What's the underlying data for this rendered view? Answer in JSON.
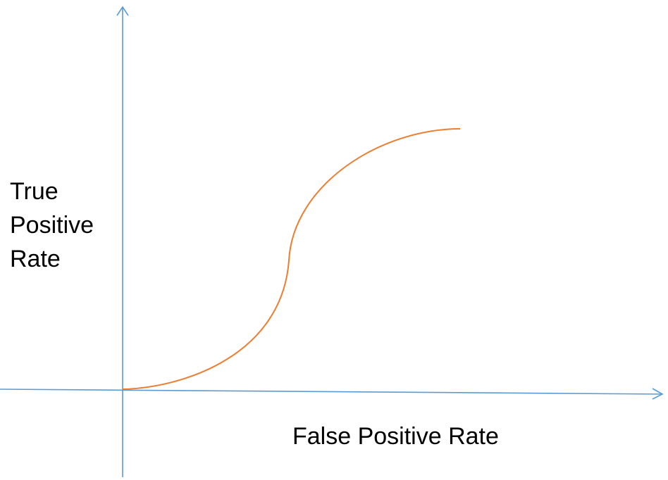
{
  "y_axis_label": {
    "lines": [
      "True",
      "Positive",
      "Rate"
    ]
  },
  "x_axis_label": "False Positive Rate"
}
